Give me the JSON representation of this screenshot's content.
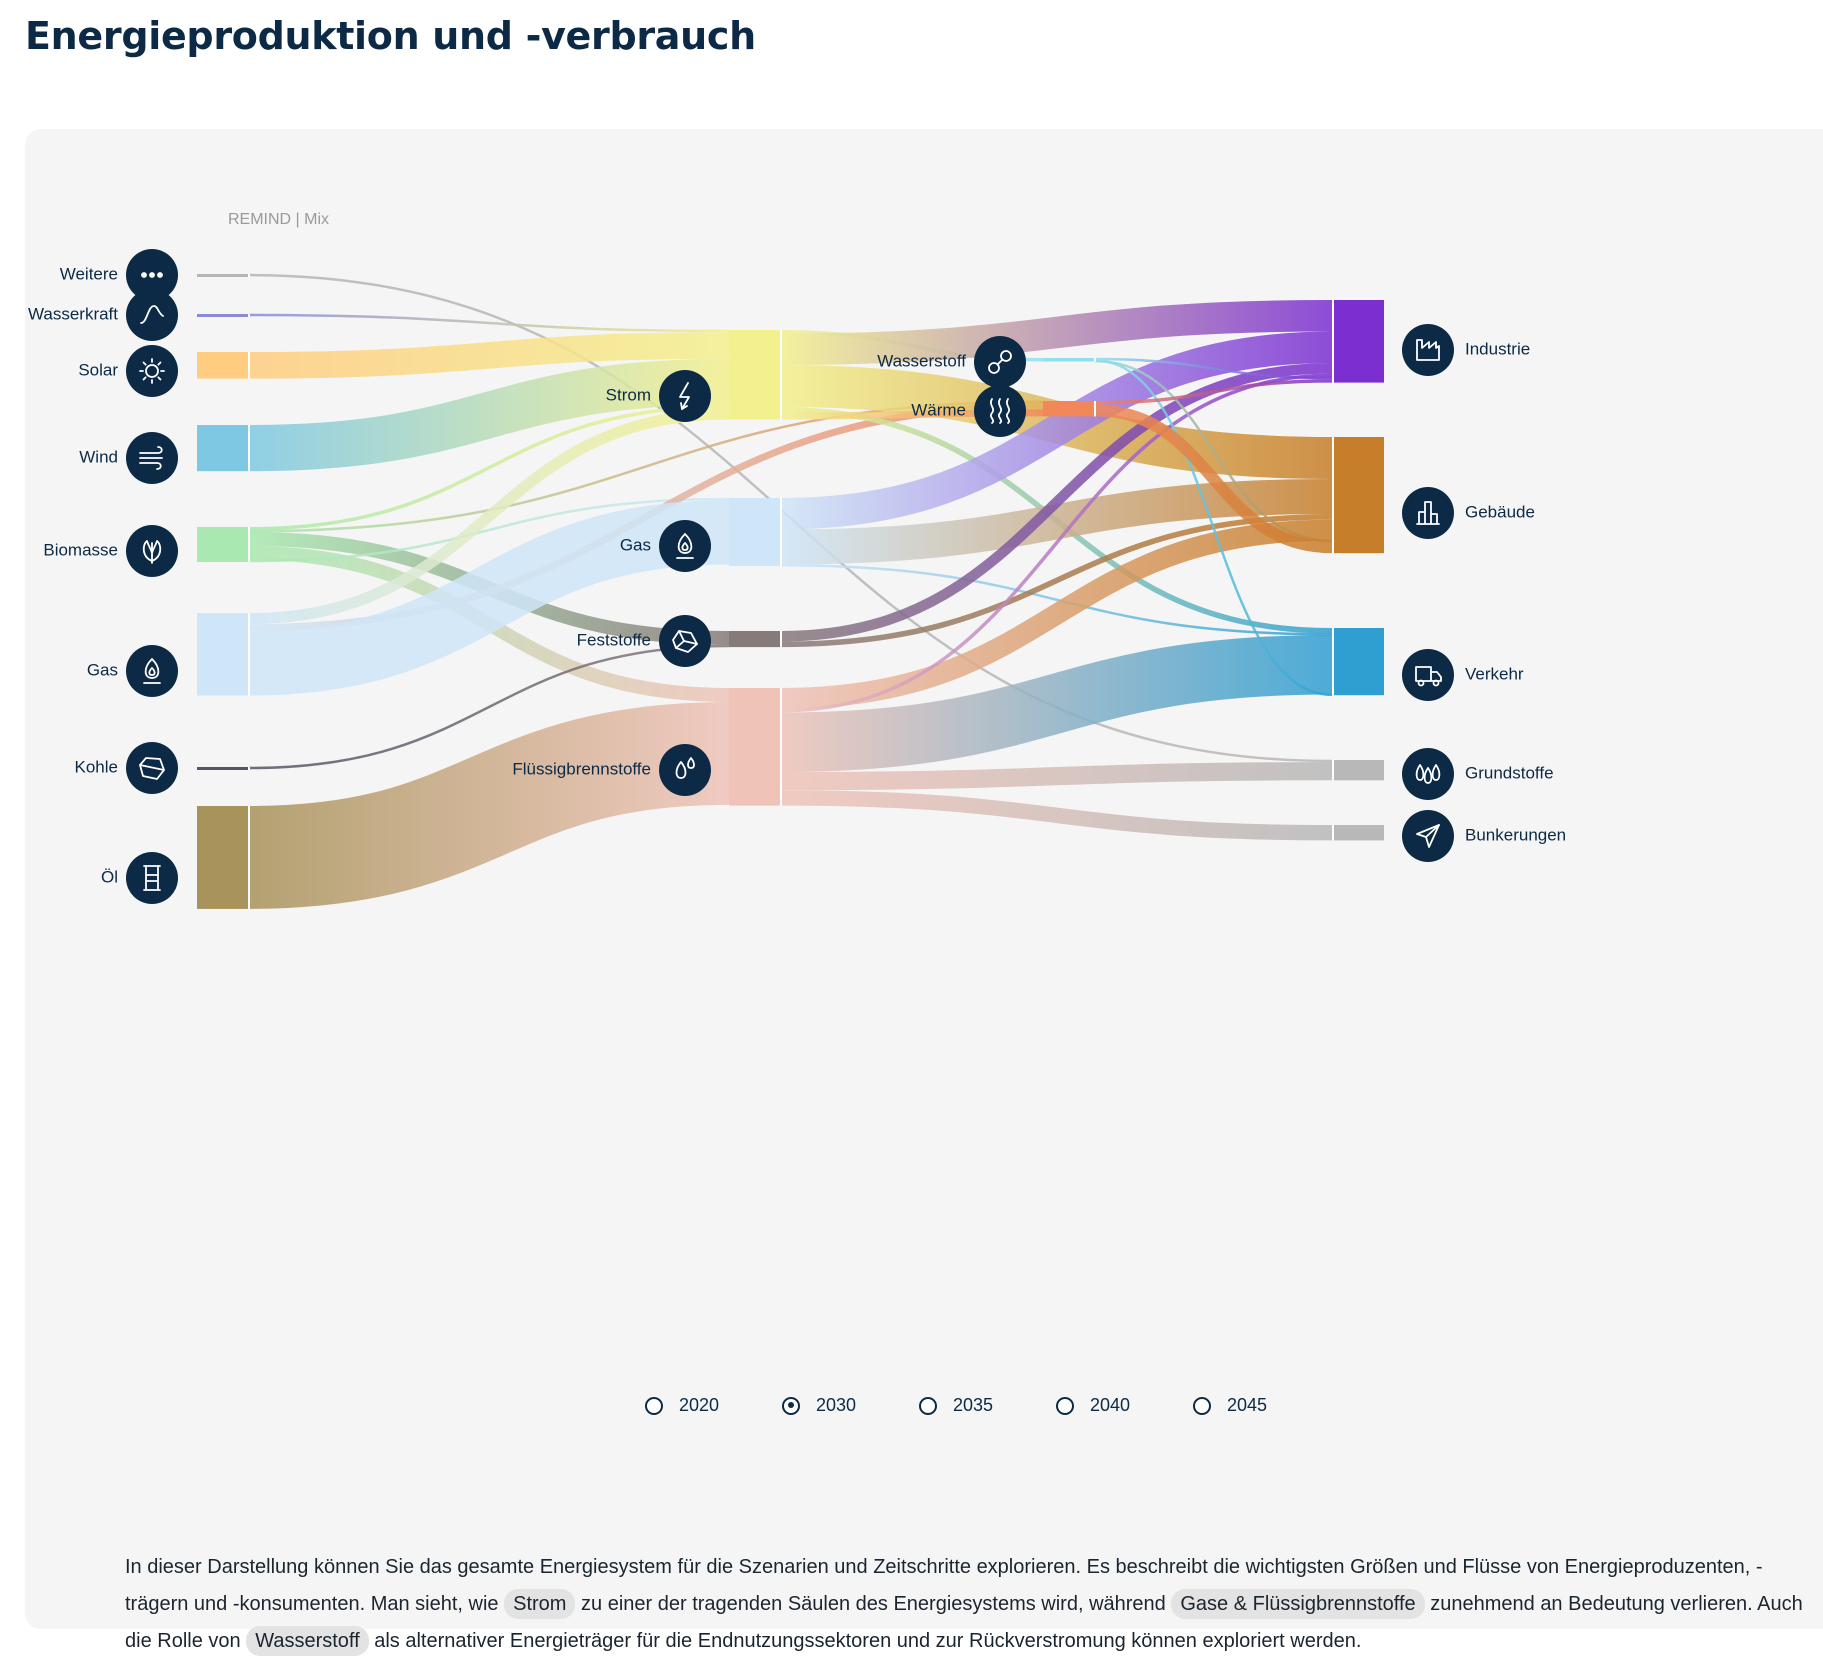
{
  "page_title": "Energieproduktion und -verbrauch",
  "source_label": "REMIND | Mix",
  "colors": {
    "node_circle": "#0c2a45",
    "panel_bg": "#f5f5f5",
    "weitere": "#b5b5b5",
    "wasserkraft": "#8a8ad6",
    "solar": "#ffcc80",
    "wind": "#7ec8e3",
    "biomasse": "#a9e8b0",
    "gas": "#cfe6f8",
    "kohle": "#555566",
    "oel": "#a8935a",
    "strom": "#f3f08e",
    "feststoffe": "#877a7a",
    "fluessig": "#efc3b8",
    "wasserstoff": "#8fe0ee",
    "waerme": "#f2875a",
    "industrie": "#7b2fd1",
    "gebaeude": "#c77e2a",
    "verkehr": "#2f9fd1",
    "grundstoffe": "#b8b8b8",
    "bunkerungen": "#b8b8b8"
  },
  "nodes": {
    "sources": [
      {
        "id": "weitere",
        "label": "Weitere",
        "icon": "dots-icon"
      },
      {
        "id": "wasserkraft",
        "label": "Wasserkraft",
        "icon": "wave-icon"
      },
      {
        "id": "solar",
        "label": "Solar",
        "icon": "sun-icon"
      },
      {
        "id": "wind",
        "label": "Wind",
        "icon": "wind-icon"
      },
      {
        "id": "biomasse",
        "label": "Biomasse",
        "icon": "leaf-icon"
      },
      {
        "id": "gas",
        "label": "Gas",
        "icon": "flame-icon"
      },
      {
        "id": "kohle",
        "label": "Kohle",
        "icon": "coal-icon"
      },
      {
        "id": "oel",
        "label": "Öl",
        "icon": "barrel-icon"
      }
    ],
    "carriers": [
      {
        "id": "strom",
        "label": "Strom",
        "icon": "lightning-icon"
      },
      {
        "id": "gas_c",
        "label": "Gas",
        "icon": "flame-icon"
      },
      {
        "id": "feststoffe",
        "label": "Feststoffe",
        "icon": "rock-icon"
      },
      {
        "id": "fluessig",
        "label": "Flüssigbrennstoffe",
        "icon": "droplets-icon"
      },
      {
        "id": "wasserstoff",
        "label": "Wasserstoff",
        "icon": "molecule-icon"
      },
      {
        "id": "waerme",
        "label": "Wärme",
        "icon": "heat-icon"
      }
    ],
    "sectors": [
      {
        "id": "industrie",
        "label": "Industrie",
        "icon": "factory-icon"
      },
      {
        "id": "gebaeude",
        "label": "Gebäude",
        "icon": "building-icon"
      },
      {
        "id": "verkehr",
        "label": "Verkehr",
        "icon": "truck-icon"
      },
      {
        "id": "grundstoffe",
        "label": "Grundstoffe",
        "icon": "raw-materials-icon"
      },
      {
        "id": "bunkerungen",
        "label": "Bunkerungen",
        "icon": "airplane-icon"
      }
    ]
  },
  "flows": [
    {
      "from": "weitere",
      "to": "grundstoffe",
      "value": 3
    },
    {
      "from": "wasserkraft",
      "to": "strom",
      "value": 3
    },
    {
      "from": "solar",
      "to": "strom",
      "value": 38
    },
    {
      "from": "wind",
      "to": "strom",
      "value": 66
    },
    {
      "from": "biomasse",
      "to": "strom",
      "value": 5
    },
    {
      "from": "biomasse",
      "to": "waerme",
      "value": 2
    },
    {
      "from": "biomasse",
      "to": "feststoffe",
      "value": 20
    },
    {
      "from": "biomasse",
      "to": "fluessig",
      "value": 20
    },
    {
      "from": "biomasse",
      "to": "gas_c",
      "value": 3
    },
    {
      "from": "gas",
      "to": "strom",
      "value": 16
    },
    {
      "from": "gas",
      "to": "waerme",
      "value": 10
    },
    {
      "from": "gas",
      "to": "gas_c",
      "value": 92
    },
    {
      "from": "kohle",
      "to": "feststoffe",
      "value": 3
    },
    {
      "from": "oel",
      "to": "fluessig",
      "value": 147
    },
    {
      "from": "strom",
      "to": "wasserstoff",
      "value": 5
    },
    {
      "from": "strom",
      "to": "industrie",
      "value": 45
    },
    {
      "from": "strom",
      "to": "gebaeude",
      "value": 60
    },
    {
      "from": "strom",
      "to": "verkehr",
      "value": 8
    },
    {
      "from": "strom",
      "to": "waerme",
      "value": 10
    },
    {
      "from": "gas_c",
      "to": "industrie",
      "value": 45
    },
    {
      "from": "gas_c",
      "to": "gebaeude",
      "value": 50
    },
    {
      "from": "gas_c",
      "to": "verkehr",
      "value": 2
    },
    {
      "from": "feststoffe",
      "to": "industrie",
      "value": 15
    },
    {
      "from": "feststoffe",
      "to": "gebaeude",
      "value": 8
    },
    {
      "from": "fluessig",
      "to": "gebaeude",
      "value": 30
    },
    {
      "from": "fluessig",
      "to": "industrie",
      "value": 5
    },
    {
      "from": "fluessig",
      "to": "verkehr",
      "value": 85
    },
    {
      "from": "fluessig",
      "to": "grundstoffe",
      "value": 26
    },
    {
      "from": "fluessig",
      "to": "bunkerungen",
      "value": 22
    },
    {
      "from": "wasserstoff",
      "to": "industrie",
      "value": 3
    },
    {
      "from": "wasserstoff",
      "to": "verkehr",
      "value": 1
    },
    {
      "from": "wasserstoff",
      "to": "gebaeude",
      "value": 1
    },
    {
      "from": "waerme",
      "to": "industrie",
      "value": 5
    },
    {
      "from": "waerme",
      "to": "gebaeude",
      "value": 17
    }
  ],
  "years": [
    {
      "label": "2020",
      "checked": false
    },
    {
      "label": "2030",
      "checked": true
    },
    {
      "label": "2035",
      "checked": false
    },
    {
      "label": "2040",
      "checked": false
    },
    {
      "label": "2045",
      "checked": false
    }
  ],
  "description": {
    "part1": "In dieser Darstellung können Sie das gesamte Energiesystem für die Szenarien und Zeitschritte explorieren. Es beschreibt die wichtigsten Größen und Flüsse von Energieproduzenten, - trägern und -konsumenten. Man sieht, wie",
    "chip1": "Strom",
    "part2": "zu einer der tragenden Säulen des Energiesystems wird, während",
    "chip2": "Gase & Flüssigbrennstoffe",
    "part3": "zunehmend an Bedeutung verlieren. Auch die Rolle von",
    "chip3": "Wasserstoff",
    "part4": "als alternativer Energieträger für die Endnutzungssektoren und zur Rückverstromung können exploriert werden."
  }
}
